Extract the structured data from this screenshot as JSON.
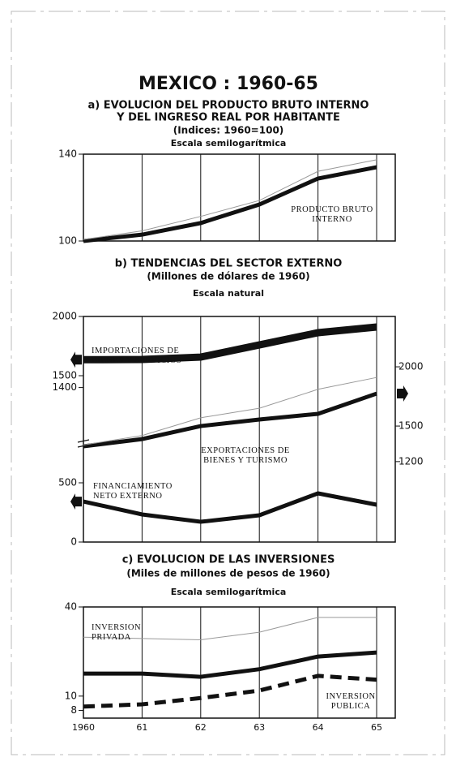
{
  "title": "MEXICO : 1960-65",
  "chart_data": [
    {
      "type": "line",
      "title": [
        "a) EVOLUCION DEL PRODUCTO BRUTO INTERNO",
        "Y DEL INGRESO REAL POR HABITANTE"
      ],
      "subtitle": "(Indices: 1960=100)",
      "scale_note": "Escala semilogarítmica",
      "categories": [
        null,
        null,
        null,
        null,
        null,
        null
      ],
      "log_scale": true,
      "ylim": [
        100,
        140
      ],
      "yticks": [
        100,
        140
      ],
      "series": [
        {
          "name": "PRODUCTO BRUTO INTERNO",
          "color": "#111",
          "values": [
            100,
            102.5,
            107.2,
            115.2,
            127.4,
            133.1
          ]
        },
        {
          "color": "#999",
          "values": [
            100.6,
            104,
            110,
            117,
            131,
            137
          ]
        }
      ]
    },
    {
      "type": "line",
      "title": [
        "b) TENDENCIAS DEL SECTOR EXTERNO"
      ],
      "subtitle": "(Millones de dólares de 1960)",
      "scale_note": "Escala natural",
      "categories": [
        null,
        null,
        null,
        null,
        null,
        null
      ],
      "axis_break": true,
      "ylim": [
        0,
        2000
      ],
      "yticks": [
        0,
        500,
        1400,
        1500,
        2000
      ],
      "y2lim": [
        521,
        2425
      ],
      "y2ticks": [
        1200,
        1500,
        2000
      ],
      "series": [
        {
          "name": "IMPORTACIONES DE BIENES Y SERVICIOS",
          "color": "#111",
          "values": [
            1635,
            1637,
            1657,
            1760,
            1863,
            1911
          ]
        },
        {
          "name": "EXPORTACIONES DE BIENES Y TURISMO",
          "color": "#111",
          "axis": "y2",
          "values": [
            1329,
            1390,
            1500,
            1555,
            1603,
            1774
          ]
        },
        {
          "name": "FINANCIAMIENTO NETO EXTERNO",
          "color": "#111",
          "values": [
            342,
            233,
            171,
            226,
            411,
            315
          ]
        },
        {
          "color": "#999",
          "axis": "y2",
          "values": [
            1340,
            1420,
            1570,
            1650,
            1810,
            1910
          ]
        }
      ]
    },
    {
      "type": "line",
      "title": [
        "c) EVOLUCION DE LAS INVERSIONES"
      ],
      "subtitle": "(Miles de millones de pesos de 1960)",
      "scale_note": "Escala semilogarítmica",
      "categories": [
        "1960",
        "61",
        "62",
        "63",
        "64",
        "65"
      ],
      "log_scale": true,
      "ylim": [
        7.1,
        40
      ],
      "yticks": [
        8,
        10,
        40
      ],
      "series": [
        {
          "name": "INVERSION PRIVADA",
          "color": "#111",
          "values": [
            14.2,
            14.2,
            13.5,
            15.2,
            18.5,
            19.7
          ]
        },
        {
          "name": "INVERSION PUBLICA",
          "color": "#111",
          "dash": true,
          "values": [
            8.5,
            8.8,
            9.7,
            10.9,
            13.7,
            12.9
          ]
        },
        {
          "color": "#999",
          "values": [
            25,
            24.5,
            24,
            27,
            34,
            34
          ]
        }
      ]
    }
  ]
}
